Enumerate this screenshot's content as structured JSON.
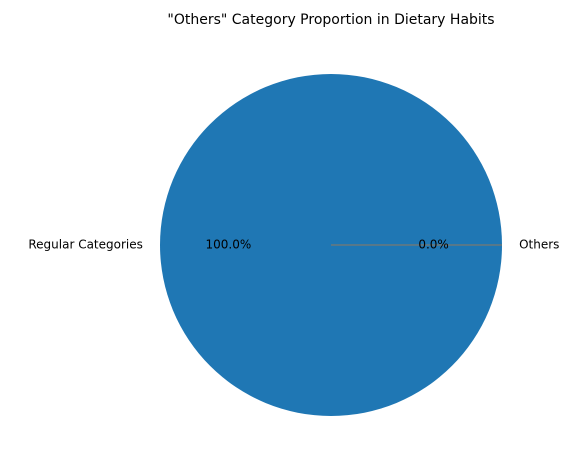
{
  "chart_data": {
    "type": "pie",
    "title": "\"Others\" Category Proportion in Dietary Habits",
    "slices": [
      {
        "label": "Regular Categories",
        "value": 100.0,
        "pct_label": "100.0%",
        "color": "#1f77b4"
      },
      {
        "label": "Others",
        "value": 0.0,
        "pct_label": "0.0%",
        "color": "#ff7f0e"
      }
    ],
    "start_angle_deg": 0,
    "direction": "counterclockwise",
    "legend": "none"
  }
}
